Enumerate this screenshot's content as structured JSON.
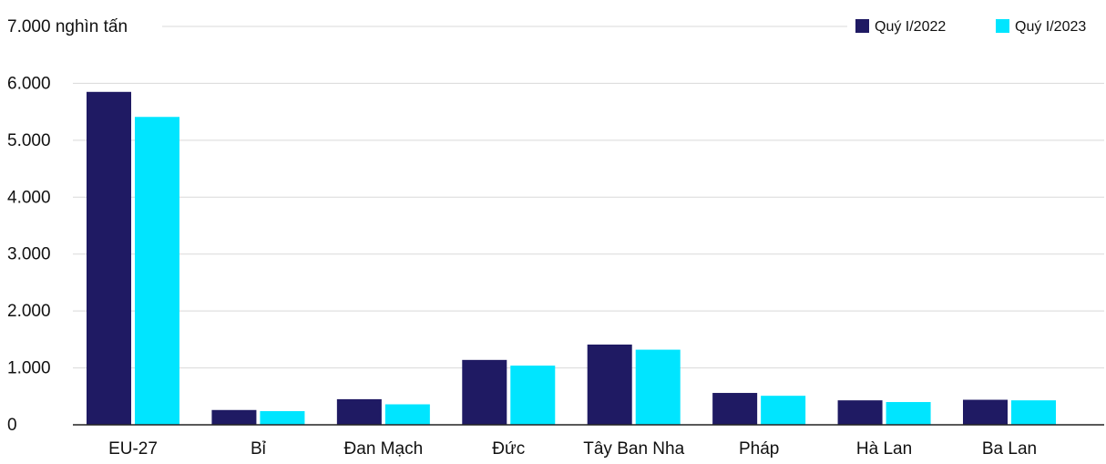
{
  "chart_data": {
    "type": "bar",
    "unit_label": "nghìn tấn",
    "categories": [
      "EU-27",
      "Bỉ",
      "Đan Mạch",
      "Đức",
      "Tây Ban Nha",
      "Pháp",
      "Hà Lan",
      "Ba Lan"
    ],
    "series": [
      {
        "name": "Quý I/2022",
        "color": "#1f1a63",
        "values": [
          5850,
          260,
          450,
          1140,
          1410,
          560,
          430,
          440
        ]
      },
      {
        "name": "Quý I/2023",
        "color": "#00e5ff",
        "values": [
          5410,
          240,
          360,
          1040,
          1320,
          510,
          400,
          430
        ]
      }
    ],
    "ylim": [
      0,
      7000
    ],
    "yticks": [
      {
        "value": 0,
        "label": "0"
      },
      {
        "value": 1000,
        "label": "1.000"
      },
      {
        "value": 2000,
        "label": "2.000"
      },
      {
        "value": 3000,
        "label": "3.000"
      },
      {
        "value": 4000,
        "label": "4.000"
      },
      {
        "value": 5000,
        "label": "5.000"
      },
      {
        "value": 6000,
        "label": "6.000"
      },
      {
        "value": 7000,
        "label": "7.000"
      }
    ],
    "grid": true,
    "legend_position": "top-right"
  }
}
